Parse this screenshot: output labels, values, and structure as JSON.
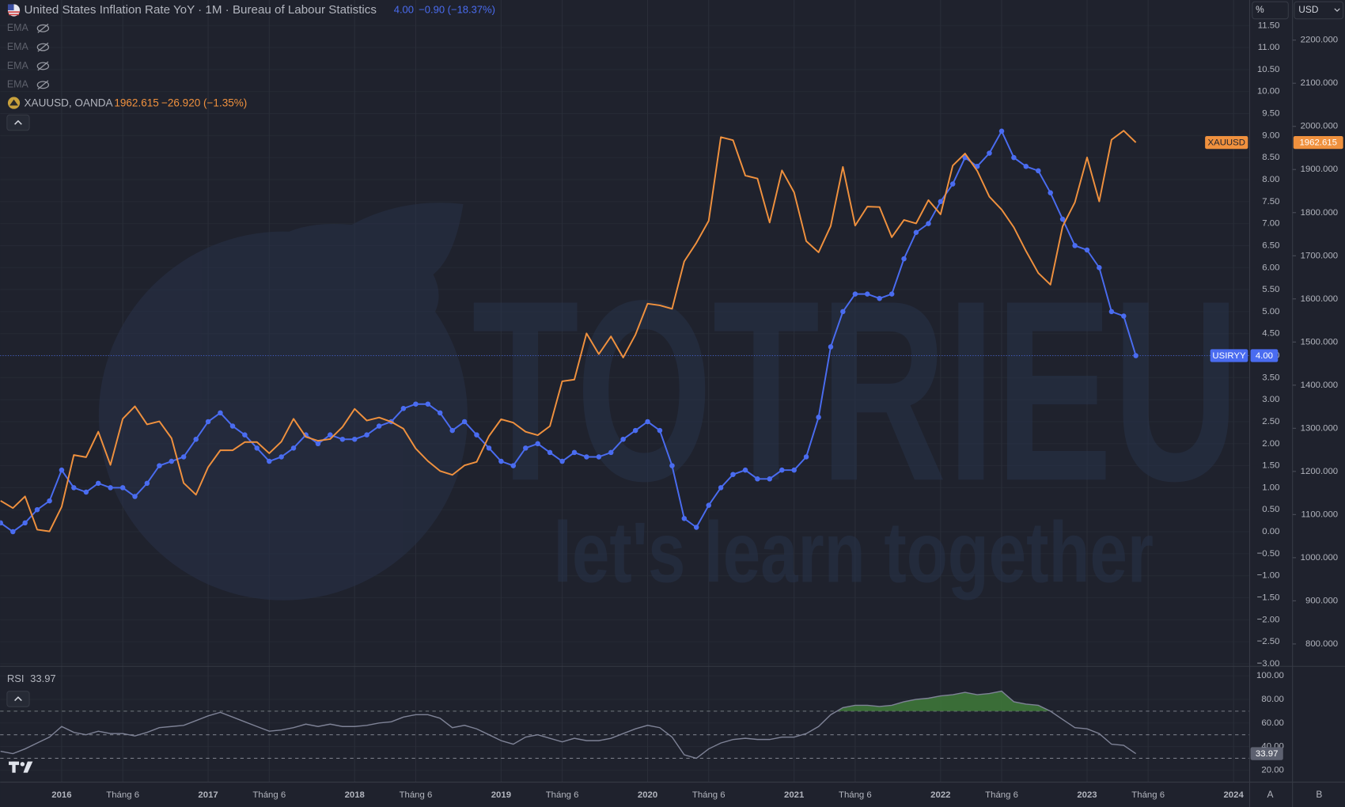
{
  "header": {
    "title": "United States Inflation Rate YoY · 1M · Bureau of Labour Statistics",
    "usiryy_last": "4.00",
    "usiryy_change": "−0.90 (−18.37%)",
    "indicators": [
      "EMA",
      "EMA",
      "EMA",
      "EMA"
    ],
    "xau_name": "XAUUSD, OANDA",
    "xau_last": "1962.615",
    "xau_change": "−26.920 (−1.35%)",
    "scale_buttons": [
      "%",
      "USD"
    ],
    "corner_buttons": [
      "A",
      "B"
    ],
    "watermark": "TOTRIEU",
    "watermark_slogan": "let's learn together"
  },
  "chart_data": [
    {
      "type": "line",
      "x": [
        2015.583,
        2015.667,
        2015.75,
        2015.833,
        2015.917,
        2016,
        2016.083,
        2016.167,
        2016.25,
        2016.333,
        2016.417,
        2016.5,
        2016.583,
        2016.667,
        2016.75,
        2016.833,
        2016.917,
        2017,
        2017.083,
        2017.167,
        2017.25,
        2017.333,
        2017.417,
        2017.5,
        2017.583,
        2017.667,
        2017.75,
        2017.833,
        2017.917,
        2018,
        2018.083,
        2018.167,
        2018.25,
        2018.333,
        2018.417,
        2018.5,
        2018.583,
        2018.667,
        2018.75,
        2018.833,
        2018.917,
        2019,
        2019.083,
        2019.167,
        2019.25,
        2019.333,
        2019.417,
        2019.5,
        2019.583,
        2019.667,
        2019.75,
        2019.833,
        2019.917,
        2020,
        2020.083,
        2020.167,
        2020.25,
        2020.333,
        2020.417,
        2020.5,
        2020.583,
        2020.667,
        2020.75,
        2020.833,
        2020.917,
        2021,
        2021.083,
        2021.167,
        2021.25,
        2021.333,
        2021.417,
        2021.5,
        2021.583,
        2021.667,
        2021.75,
        2021.833,
        2021.917,
        2022,
        2022.083,
        2022.167,
        2022.25,
        2022.333,
        2022.417,
        2022.5,
        2022.583,
        2022.667,
        2022.75,
        2022.833,
        2022.917,
        2023,
        2023.083,
        2023.167,
        2023.25,
        2023.333
      ],
      "xlim": [
        2015.58,
        2024.11
      ],
      "xticks": [
        2016,
        {
          "value": 2016.417,
          "label": "Tháng 6"
        },
        2017,
        {
          "value": 2017.417,
          "label": "Tháng 6"
        },
        2018,
        {
          "value": 2018.417,
          "label": "Tháng 6"
        },
        2019,
        {
          "value": 2019.417,
          "label": "Tháng 6"
        },
        2020,
        {
          "value": 2020.417,
          "label": "Tháng 6"
        },
        2021,
        {
          "value": 2021.417,
          "label": "Tháng 6"
        },
        2022,
        {
          "value": 2022.417,
          "label": "Tháng 6"
        },
        2023,
        {
          "value": 2023.417,
          "label": "Tháng 6"
        },
        2024
      ],
      "ylim": [
        -3.02,
        12.08
      ],
      "yticks": [
        {
          "value": -3,
          "label": "−3.00"
        },
        {
          "value": -2.5,
          "label": "−2.50"
        },
        {
          "value": -2,
          "label": "−2.00"
        },
        {
          "value": -1.5,
          "label": "−1.50"
        },
        {
          "value": -1,
          "label": "−1.00"
        },
        {
          "value": -0.5,
          "label": "−0.50"
        },
        {
          "value": 0,
          "label": "0.00"
        },
        {
          "value": 0.5,
          "label": "0.50"
        },
        {
          "value": 1,
          "label": "1.00"
        },
        {
          "value": 1.5,
          "label": "1.50"
        },
        {
          "value": 2,
          "label": "2.00"
        },
        {
          "value": 2.5,
          "label": "2.50"
        },
        {
          "value": 3,
          "label": "3.00"
        },
        {
          "value": 3.5,
          "label": "3.50"
        },
        {
          "value": 4,
          "label": "4.00"
        },
        {
          "value": 4.5,
          "label": "4.50"
        },
        {
          "value": 5,
          "label": "5.00"
        },
        {
          "value": 5.5,
          "label": "5.50"
        },
        {
          "value": 6,
          "label": "6.00"
        },
        {
          "value": 6.5,
          "label": "6.50"
        },
        {
          "value": 7,
          "label": "7.00"
        },
        {
          "value": 7.5,
          "label": "7.50"
        },
        {
          "value": 8,
          "label": "8.00"
        },
        {
          "value": 8.5,
          "label": "8.50"
        },
        {
          "value": 9,
          "label": "9.00"
        },
        {
          "value": 9.5,
          "label": "9.50"
        },
        {
          "value": 10,
          "label": "10.00"
        },
        {
          "value": 10.5,
          "label": "10.50"
        },
        {
          "value": 11,
          "label": "11.00"
        },
        {
          "value": 11.5,
          "label": "11.50"
        }
      ],
      "y2lim": [
        752,
        2293
      ],
      "y2ticks": [
        {
          "value": 800,
          "label": "800.000"
        },
        {
          "value": 900,
          "label": "900.000"
        },
        {
          "value": 1000,
          "label": "1000.000"
        },
        {
          "value": 1100,
          "label": "1100.000"
        },
        {
          "value": 1200,
          "label": "1200.000"
        },
        {
          "value": 1300,
          "label": "1300.000"
        },
        {
          "value": 1400,
          "label": "1400.000"
        },
        {
          "value": 1500,
          "label": "1500.000"
        },
        {
          "value": 1600,
          "label": "1600.000"
        },
        {
          "value": 1700,
          "label": "1700.000"
        },
        {
          "value": 1800,
          "label": "1800.000"
        },
        {
          "value": 1900,
          "label": "1900.000"
        },
        {
          "value": 2000,
          "label": "2000.000"
        },
        {
          "value": 2100,
          "label": "2100.000"
        },
        {
          "value": 2200,
          "label": "2200.000"
        }
      ],
      "grid": true,
      "series": [
        {
          "name": "USIRYY",
          "color": "#4a6cf0",
          "axis": "y",
          "markers": true,
          "values": [
            0.2,
            0.0,
            0.2,
            0.5,
            0.7,
            1.4,
            1.0,
            0.9,
            1.1,
            1.0,
            1.0,
            0.8,
            1.1,
            1.5,
            1.6,
            1.7,
            2.1,
            2.5,
            2.7,
            2.4,
            2.2,
            1.9,
            1.6,
            1.7,
            1.9,
            2.2,
            2.0,
            2.2,
            2.1,
            2.1,
            2.2,
            2.4,
            2.5,
            2.8,
            2.9,
            2.9,
            2.7,
            2.3,
            2.5,
            2.2,
            1.9,
            1.6,
            1.5,
            1.9,
            2.0,
            1.8,
            1.6,
            1.8,
            1.7,
            1.7,
            1.8,
            2.1,
            2.3,
            2.5,
            2.3,
            1.5,
            0.3,
            0.1,
            0.6,
            1.0,
            1.3,
            1.4,
            1.2,
            1.2,
            1.4,
            1.4,
            1.7,
            2.6,
            4.2,
            5.0,
            5.4,
            5.4,
            5.3,
            5.4,
            6.2,
            6.8,
            7.0,
            7.5,
            7.9,
            8.5,
            8.3,
            8.6,
            9.1,
            8.5,
            8.3,
            8.2,
            7.7,
            7.1,
            6.5,
            6.4,
            6.0,
            5.0,
            4.9,
            4.0
          ]
        },
        {
          "name": "XAUUSD",
          "color": "#f0913e",
          "axis": "y2",
          "markers": false,
          "values": [
            1132,
            1115,
            1142,
            1065,
            1061,
            1118,
            1238,
            1233,
            1292,
            1215,
            1322,
            1351,
            1309,
            1316,
            1277,
            1173,
            1146,
            1210,
            1249,
            1249,
            1268,
            1268,
            1242,
            1269,
            1322,
            1280,
            1271,
            1275,
            1303,
            1345,
            1318,
            1325,
            1315,
            1299,
            1253,
            1224,
            1201,
            1192,
            1214,
            1222,
            1282,
            1321,
            1313,
            1292,
            1284,
            1305,
            1409,
            1413,
            1520,
            1472,
            1513,
            1464,
            1517,
            1589,
            1585,
            1577,
            1687,
            1730,
            1781,
            1975,
            1968,
            1886,
            1879,
            1777,
            1898,
            1847,
            1734,
            1708,
            1769,
            1906,
            1770,
            1814,
            1813,
            1743,
            1783,
            1775,
            1829,
            1796,
            1909,
            1937,
            1897,
            1837,
            1807,
            1766,
            1711,
            1660,
            1633,
            1768,
            1824,
            1928,
            1826,
            1969,
            1990,
            1962.615
          ]
        }
      ]
    },
    {
      "type": "line",
      "title": "RSI",
      "ylim": [
        9.8,
        107.3
      ],
      "yticks": [
        {
          "value": 20,
          "label": "20.00"
        },
        {
          "value": 40,
          "label": "40.00"
        },
        {
          "value": 60,
          "label": "60.00"
        },
        {
          "value": 80,
          "label": "80.00"
        },
        {
          "value": 100,
          "label": "100.00"
        }
      ],
      "bands": [
        30,
        50,
        70
      ],
      "overbought_color": "#3f7a3a",
      "series": [
        {
          "name": "RSI",
          "color": "#7e8296",
          "values": [
            36,
            34,
            38,
            43,
            48,
            57,
            52,
            50,
            53,
            51,
            51,
            49,
            52,
            56,
            57,
            58,
            62,
            66,
            69,
            65,
            61,
            57,
            53,
            54,
            56,
            59,
            57,
            59,
            57,
            57,
            58,
            60,
            61,
            65,
            67,
            67,
            64,
            56,
            58,
            55,
            50,
            45,
            42,
            48,
            50,
            47,
            44,
            47,
            45,
            45,
            47,
            51,
            55,
            58,
            56,
            48,
            33,
            30,
            38,
            43,
            46,
            47,
            46,
            46,
            48,
            48,
            51,
            57,
            67,
            73,
            75,
            75,
            74,
            75,
            78,
            80,
            81,
            83,
            84,
            86,
            84,
            85,
            87,
            78,
            76,
            75,
            70,
            63,
            56,
            55,
            51,
            42,
            41,
            33.97
          ]
        }
      ]
    }
  ]
}
